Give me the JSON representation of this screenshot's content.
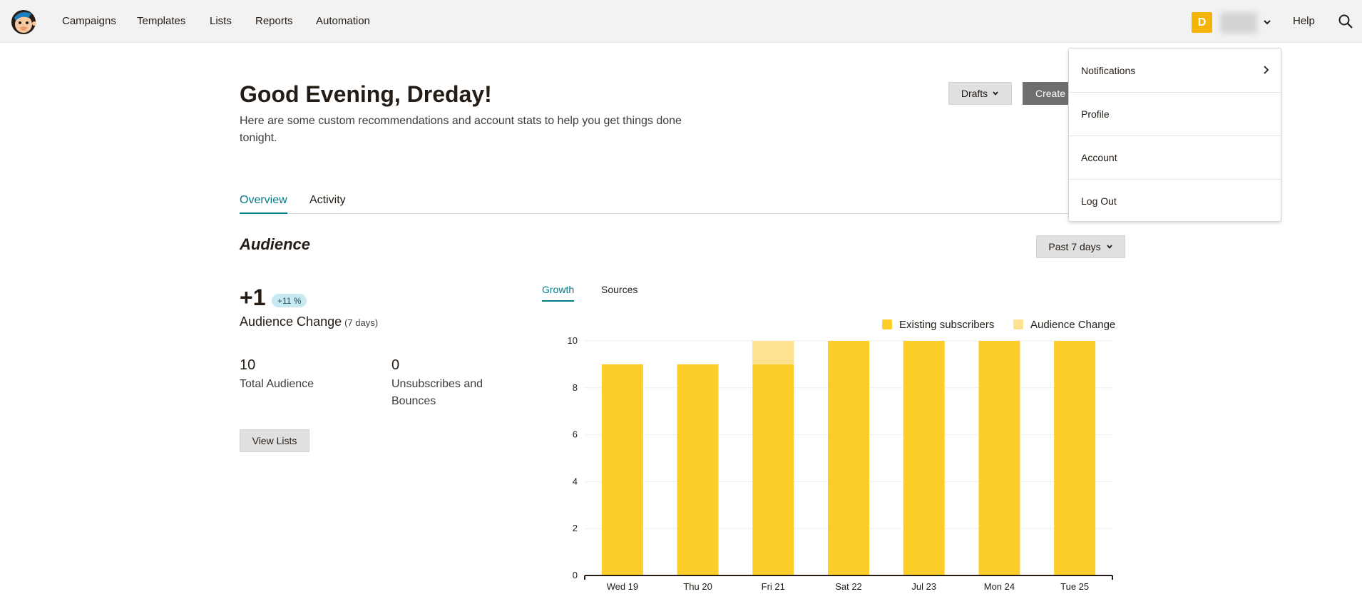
{
  "nav": {
    "links": [
      "Campaigns",
      "Templates",
      "Lists",
      "Reports",
      "Automation"
    ],
    "avatar_initial": "D",
    "help": "Help"
  },
  "header": {
    "greeting": "Good Evening, Dreday!",
    "subtext": "Here are some custom recommendations and account stats to help you get things done tonight.",
    "drafts_label": "Drafts",
    "create_label": "Create"
  },
  "tabs": [
    "Overview",
    "Activity"
  ],
  "audience": {
    "title": "Audience",
    "range_label": "Past 7 days",
    "change_value": "+1",
    "change_pct": "+11 %",
    "change_label": "Audience Change",
    "change_period": "(7 days)",
    "total_value": "10",
    "total_label": "Total Audience",
    "unsub_value": "0",
    "unsub_label": "Unsubscribes and Bounces",
    "view_lists_label": "View Lists"
  },
  "chart_tabs": [
    "Growth",
    "Sources"
  ],
  "menu": {
    "items": [
      "Notifications",
      "Profile",
      "Account",
      "Log Out"
    ]
  },
  "colors": {
    "accent": "#007c89",
    "existing": "#fdce2a",
    "change": "#fee28f"
  },
  "chart_data": {
    "type": "bar",
    "stacked": true,
    "categories": [
      "Wed 19",
      "Thu 20",
      "Fri 21",
      "Sat 22",
      "Jul 23",
      "Mon 24",
      "Tue 25"
    ],
    "series": [
      {
        "name": "Existing subscribers",
        "values": [
          9,
          9,
          9,
          10,
          10,
          10,
          10
        ]
      },
      {
        "name": "Audience Change",
        "values": [
          0,
          0,
          1,
          0,
          0,
          0,
          0
        ]
      }
    ],
    "yticks": [
      0,
      2,
      4,
      6,
      8,
      10
    ],
    "ylim": [
      0,
      10
    ],
    "legend": "top-right"
  }
}
